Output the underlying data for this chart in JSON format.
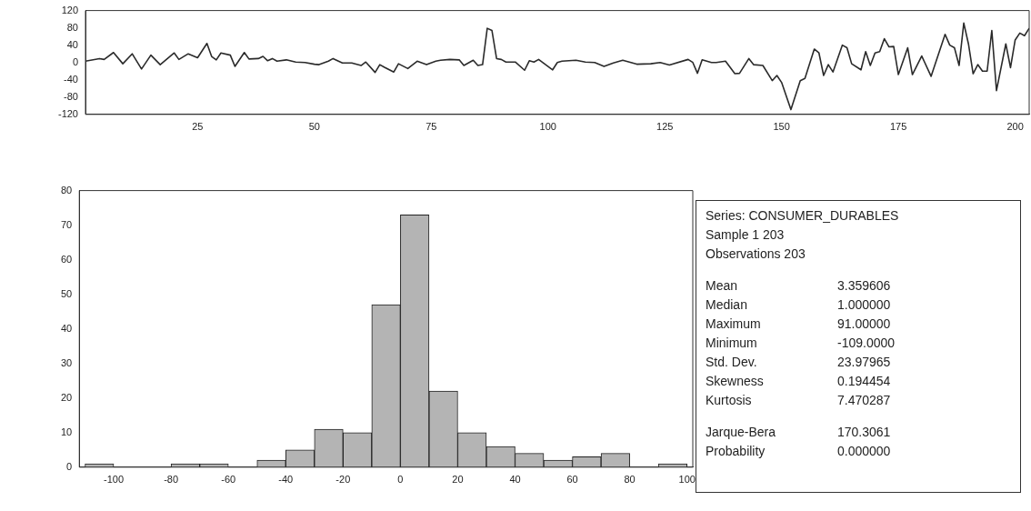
{
  "chart_data": [
    {
      "type": "line",
      "x": [
        1,
        4,
        5,
        7,
        9,
        11,
        13,
        15,
        17,
        20,
        21,
        23,
        25,
        27,
        28,
        29,
        30,
        32,
        33,
        35,
        36,
        38,
        39,
        40,
        41,
        42,
        44,
        46,
        48,
        50,
        51,
        53,
        54,
        56,
        58,
        60,
        61,
        63,
        64,
        65,
        67,
        68,
        70,
        72,
        74,
        76,
        77,
        79,
        81,
        82,
        84,
        85,
        86,
        87,
        88,
        89,
        90,
        91,
        93,
        95,
        96,
        97,
        98,
        101,
        102,
        103,
        106,
        108,
        110,
        112,
        114,
        116,
        119,
        122,
        124,
        126,
        130,
        131,
        132,
        133,
        135,
        136,
        138,
        140,
        141,
        143,
        144,
        146,
        148,
        149,
        150,
        152,
        154,
        155,
        157,
        158,
        159,
        160,
        161,
        163,
        164,
        165,
        167,
        168,
        169,
        170,
        171,
        172,
        173,
        174,
        175,
        177,
        178,
        180,
        182,
        185,
        186,
        187,
        188,
        189,
        190,
        191,
        192,
        193,
        194,
        195,
        196,
        198,
        199,
        200,
        201,
        202,
        203
      ],
      "series": [
        {
          "color": "#2a2a2a",
          "values": [
            3,
            9,
            7,
            23,
            -3,
            20,
            -15,
            17,
            -5,
            22,
            7,
            20,
            11,
            44,
            14,
            6,
            22,
            17,
            -9,
            23,
            8,
            9,
            14,
            4,
            9,
            3,
            6,
            1,
            0,
            -4,
            -5,
            3,
            9,
            -1,
            -1,
            -7,
            1,
            -23,
            -5,
            -11,
            -22,
            -3,
            -14,
            3,
            -5,
            3,
            5,
            7,
            6,
            -7,
            5,
            -7,
            -5,
            79,
            74,
            9,
            7,
            1,
            1,
            -18,
            4,
            1,
            7,
            -17,
            0,
            3,
            5,
            1,
            0,
            -9,
            -1,
            5,
            -4,
            -3,
            0,
            -6,
            7,
            0,
            -25,
            6,
            0,
            0,
            3,
            -26,
            -25,
            9,
            -5,
            -7,
            -42,
            -30,
            -46,
            -109,
            -42,
            -37,
            31,
            22,
            -30,
            -5,
            -22,
            40,
            34,
            -3,
            -17,
            25,
            -7,
            22,
            25,
            55,
            36,
            37,
            -28,
            34,
            -28,
            15,
            -32,
            65,
            40,
            34,
            -7,
            91,
            43,
            -26,
            -5,
            -20,
            -20,
            74,
            -65,
            43,
            -12,
            52,
            68,
            62,
            79
          ]
        }
      ],
      "xlim": [
        1,
        203
      ],
      "xticks": [
        25,
        50,
        75,
        100,
        125,
        150,
        175,
        200
      ],
      "ylim": [
        -120,
        120
      ],
      "yticks": [
        -120,
        -80,
        -40,
        0,
        40,
        80,
        120
      ]
    },
    {
      "type": "histogram",
      "bins": [
        -110,
        -100,
        -90,
        -80,
        -70,
        -60,
        -50,
        -40,
        -30,
        -20,
        -10,
        0,
        10,
        20,
        30,
        40,
        50,
        60,
        70,
        80,
        90,
        100
      ],
      "values": [
        1,
        0,
        0,
        1,
        1,
        0,
        2,
        5,
        11,
        10,
        47,
        73,
        22,
        10,
        6,
        4,
        2,
        3,
        4,
        0,
        1
      ],
      "color": "#b4b4b4",
      "xlim": [
        -112,
        102
      ],
      "xticks": [
        -100,
        -80,
        -60,
        -40,
        -20,
        0,
        20,
        40,
        60,
        80,
        100
      ],
      "ylim": [
        0,
        80
      ],
      "yticks": [
        0,
        10,
        20,
        30,
        40,
        50,
        60,
        70,
        80
      ]
    },
    {
      "type": "other",
      "title": "Series: CONSUMER_DURABLES",
      "annotations": [
        "Sample 1 203",
        "Observations 203",
        "Mean",
        "3.359606",
        "Median",
        "1.000000",
        "Maximum",
        "91.00000",
        "Minimum",
        "-109.0000",
        "Std. Dev.",
        "23.97965",
        "Skewness",
        "0.194454",
        "Kurtosis",
        "7.470287",
        "Jarque-Bera",
        "170.3061",
        "Probability",
        "0.000000"
      ]
    }
  ]
}
